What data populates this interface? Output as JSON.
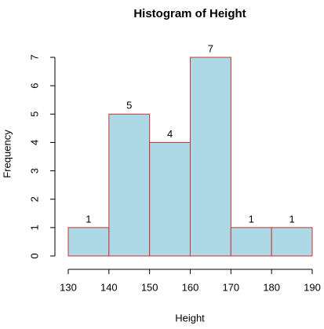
{
  "chart_data": {
    "type": "histogram",
    "title": "Histogram of Height",
    "xlabel": "Height",
    "ylabel": "Frequency",
    "bins": [
      130,
      140,
      150,
      160,
      170,
      180,
      190
    ],
    "values": [
      1,
      5,
      4,
      7,
      1,
      1
    ],
    "color": "#add8e6",
    "edgecolor": "#cc3333",
    "xlim": [
      130,
      190
    ],
    "xticks": [
      130,
      140,
      150,
      160,
      170,
      180,
      190
    ],
    "ylim": [
      0,
      7
    ],
    "yticks": [
      0,
      1,
      2,
      3,
      4,
      5,
      6,
      7
    ],
    "grid": false
  }
}
